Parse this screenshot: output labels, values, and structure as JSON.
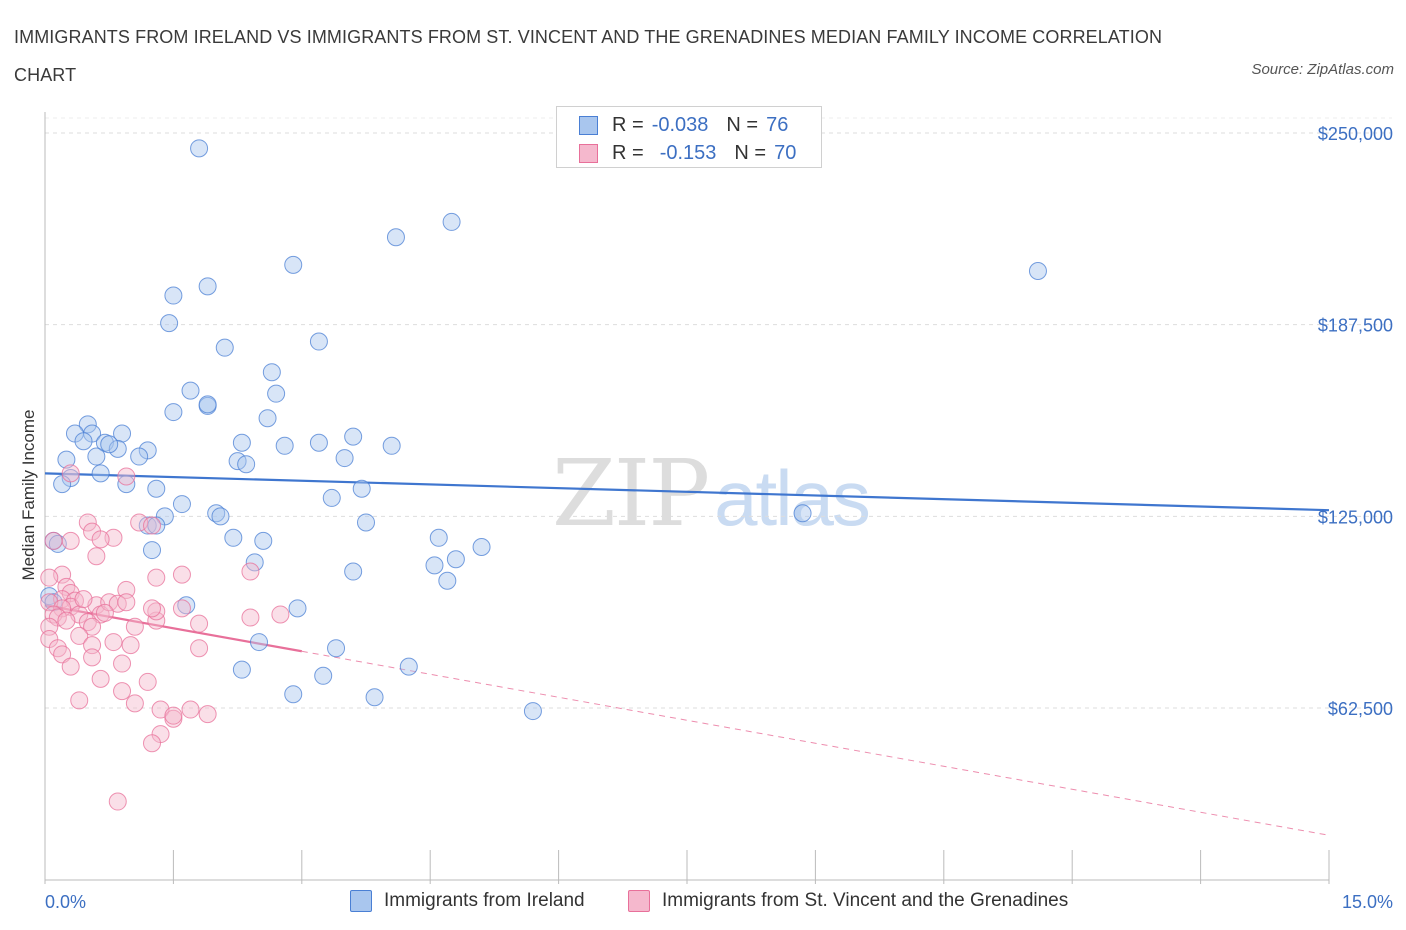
{
  "title": "IMMIGRANTS FROM IRELAND VS IMMIGRANTS FROM ST. VINCENT AND THE GRENADINES MEDIAN FAMILY INCOME CORRELATION CHART",
  "source": "Source: ZipAtlas.com",
  "watermark": {
    "zip": "ZIP",
    "atlas": "atlas"
  },
  "legend": {
    "series1": {
      "r_label": "R =",
      "r_value": "-0.038",
      "n_label": "N =",
      "n_value": "76"
    },
    "series2": {
      "r_label": "R =",
      "r_value": "-0.153",
      "n_label": "N =",
      "n_value": "70"
    }
  },
  "colors": {
    "blue": "#4a7fd4",
    "blue_fill": "#a9c6ee",
    "pink": "#e8709a",
    "pink_fill": "#f5b8cd",
    "grid": "#dddddd",
    "tick_label": "#3c6fc2"
  },
  "chart_data": {
    "type": "scatter",
    "title": "IMMIGRANTS FROM IRELAND VS IMMIGRANTS FROM ST. VINCENT AND THE GRENADINES MEDIAN FAMILY INCOME CORRELATION CHART",
    "xlabel": "",
    "ylabel": "Median Family Income",
    "xlim": [
      0,
      15
    ],
    "ylim": [
      0,
      265000
    ],
    "y_ticks": [
      62500,
      125000,
      187500,
      250000
    ],
    "y_tick_labels": [
      "$62,500",
      "$125,000",
      "$187,500",
      "$250,000"
    ],
    "x_tick_labels": [
      "0.0%",
      "15.0%"
    ],
    "series": [
      {
        "name": "Immigrants from Ireland",
        "color": "blue",
        "trend": {
          "x": [
            0,
            15
          ],
          "y": [
            139000,
            127000
          ],
          "style": "solid"
        },
        "points": [
          [
            1.8,
            245000
          ],
          [
            1.5,
            197000
          ],
          [
            1.9,
            200000
          ],
          [
            1.45,
            188000
          ],
          [
            2.1,
            180000
          ],
          [
            2.9,
            207000
          ],
          [
            4.1,
            216000
          ],
          [
            4.75,
            221000
          ],
          [
            11.6,
            205000
          ],
          [
            3.2,
            182000
          ],
          [
            2.65,
            172000
          ],
          [
            2.7,
            165000
          ],
          [
            1.7,
            166000
          ],
          [
            1.9,
            161000
          ],
          [
            1.5,
            159000
          ],
          [
            1.9,
            161500
          ],
          [
            2.6,
            157000
          ],
          [
            0.5,
            155000
          ],
          [
            0.35,
            152000
          ],
          [
            0.55,
            152000
          ],
          [
            0.9,
            152000
          ],
          [
            0.45,
            149500
          ],
          [
            0.7,
            149000
          ],
          [
            0.85,
            147000
          ],
          [
            0.75,
            148500
          ],
          [
            1.2,
            146500
          ],
          [
            1.1,
            144500
          ],
          [
            0.6,
            144500
          ],
          [
            0.25,
            143500
          ],
          [
            2.3,
            149000
          ],
          [
            2.8,
            148000
          ],
          [
            3.2,
            149000
          ],
          [
            3.6,
            151000
          ],
          [
            4.05,
            148000
          ],
          [
            3.5,
            144000
          ],
          [
            2.25,
            143000
          ],
          [
            2.35,
            142000
          ],
          [
            0.65,
            139000
          ],
          [
            0.3,
            137500
          ],
          [
            0.2,
            135500
          ],
          [
            0.95,
            135500
          ],
          [
            1.3,
            134000
          ],
          [
            3.7,
            134000
          ],
          [
            3.35,
            131000
          ],
          [
            1.6,
            129000
          ],
          [
            2.0,
            126000
          ],
          [
            2.05,
            125000
          ],
          [
            1.4,
            125000
          ],
          [
            1.2,
            122000
          ],
          [
            1.3,
            122000
          ],
          [
            3.75,
            123000
          ],
          [
            8.85,
            126000
          ],
          [
            2.2,
            118000
          ],
          [
            2.55,
            117000
          ],
          [
            1.25,
            114000
          ],
          [
            4.6,
            118000
          ],
          [
            5.1,
            115000
          ],
          [
            4.8,
            111000
          ],
          [
            4.55,
            109000
          ],
          [
            3.6,
            107000
          ],
          [
            4.7,
            104000
          ],
          [
            2.45,
            110000
          ],
          [
            0.1,
            117000
          ],
          [
            0.15,
            116000
          ],
          [
            0.05,
            99000
          ],
          [
            0.1,
            97000
          ],
          [
            1.65,
            96000
          ],
          [
            2.95,
            95000
          ],
          [
            2.5,
            84000
          ],
          [
            3.4,
            82000
          ],
          [
            4.25,
            76000
          ],
          [
            2.3,
            75000
          ],
          [
            3.25,
            73000
          ],
          [
            2.9,
            67000
          ],
          [
            3.85,
            66000
          ],
          [
            5.7,
            61500
          ]
        ]
      },
      {
        "name": "Immigrants from St. Vincent and the Grenadines",
        "color": "pink",
        "trend": {
          "x": [
            0,
            3
          ],
          "y": [
            96000,
            81000
          ],
          "style": "solid",
          "extension": {
            "x": [
              3,
              15
            ],
            "y": [
              81000,
              21000
            ],
            "style": "dashed"
          }
        },
        "points": [
          [
            0.3,
            139000
          ],
          [
            0.95,
            138000
          ],
          [
            1.1,
            123000
          ],
          [
            1.25,
            122000
          ],
          [
            0.5,
            123000
          ],
          [
            0.55,
            120000
          ],
          [
            0.8,
            118000
          ],
          [
            0.65,
            117500
          ],
          [
            0.3,
            117000
          ],
          [
            0.1,
            117000
          ],
          [
            0.6,
            112000
          ],
          [
            0.2,
            106000
          ],
          [
            0.05,
            105000
          ],
          [
            1.3,
            105000
          ],
          [
            1.6,
            106000
          ],
          [
            2.4,
            107000
          ],
          [
            0.25,
            102000
          ],
          [
            0.95,
            101000
          ],
          [
            0.3,
            100000
          ],
          [
            0.2,
            98000
          ],
          [
            0.35,
            97500
          ],
          [
            0.05,
            97000
          ],
          [
            0.6,
            96000
          ],
          [
            0.3,
            95500
          ],
          [
            0.2,
            95000
          ],
          [
            0.1,
            93000
          ],
          [
            0.4,
            93000
          ],
          [
            0.65,
            93000
          ],
          [
            0.15,
            92000
          ],
          [
            0.25,
            91000
          ],
          [
            0.5,
            90500
          ],
          [
            1.3,
            91000
          ],
          [
            0.05,
            89000
          ],
          [
            0.55,
            89000
          ],
          [
            0.75,
            97000
          ],
          [
            0.85,
            96500
          ],
          [
            0.95,
            97000
          ],
          [
            1.3,
            94000
          ],
          [
            0.7,
            93500
          ],
          [
            1.05,
            89000
          ],
          [
            1.6,
            95000
          ],
          [
            1.8,
            90000
          ],
          [
            2.4,
            92000
          ],
          [
            2.75,
            93000
          ],
          [
            0.05,
            85000
          ],
          [
            0.15,
            82000
          ],
          [
            0.4,
            86000
          ],
          [
            0.55,
            83000
          ],
          [
            0.8,
            84000
          ],
          [
            1.0,
            83000
          ],
          [
            0.2,
            80000
          ],
          [
            0.55,
            79000
          ],
          [
            0.9,
            77000
          ],
          [
            1.8,
            82000
          ],
          [
            0.3,
            76000
          ],
          [
            0.65,
            72000
          ],
          [
            1.2,
            71000
          ],
          [
            0.9,
            68000
          ],
          [
            0.4,
            65000
          ],
          [
            1.05,
            64000
          ],
          [
            1.35,
            62000
          ],
          [
            1.7,
            62000
          ],
          [
            1.9,
            60500
          ],
          [
            1.5,
            59000
          ],
          [
            1.35,
            54000
          ],
          [
            1.25,
            51000
          ],
          [
            0.85,
            32000
          ],
          [
            1.25,
            95000
          ],
          [
            0.45,
            98000
          ],
          [
            1.5,
            60000
          ]
        ]
      }
    ]
  },
  "bottom_legend": {
    "item1": "Immigrants from Ireland",
    "item2": "Immigrants from St. Vincent and the Grenadines"
  }
}
